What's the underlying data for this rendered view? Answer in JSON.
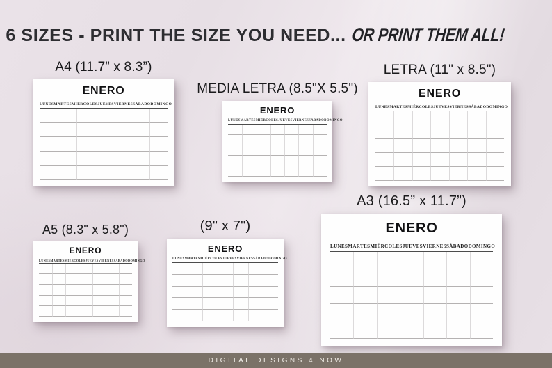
{
  "header": {
    "title_main": "6 SIZES - PRINT THE SIZE YOU NEED...",
    "title_script": "OR PRINT THEM ALL!"
  },
  "calendar_common": {
    "month": "ENERO",
    "day_headers": [
      "LUNES",
      "MARTES",
      "MIÉRCOLES",
      "JUEVES",
      "VIERNES",
      "SÁBADO",
      "DOMINGO"
    ],
    "rows": 5,
    "columns": 7
  },
  "calendars": [
    {
      "id": "a4",
      "label": "A4 (11.7” x 8.3”)"
    },
    {
      "id": "media-letra",
      "label": "MEDIA LETRA (8.5\"X 5.5\")"
    },
    {
      "id": "letra",
      "label": "LETRA (11\" x 8.5\")"
    },
    {
      "id": "a5",
      "label": "A5 (8.3\" x 5.8\")"
    },
    {
      "id": "9x7",
      "label": "(9\" x 7\")"
    },
    {
      "id": "a3",
      "label": "A3 (16.5” x 11.7”)"
    }
  ],
  "footer": {
    "brand": "DIGITAL DESIGNS 4 NOW"
  },
  "colors": {
    "background": "#e8e0e6",
    "paper": "#fefefe",
    "footer_bar": "#7b7268",
    "title_text": "#2d2d31",
    "header_underline": "#4c4c4c",
    "grid_line_horizontal": "#b5b2b2",
    "grid_line_vertical": "#dcdadb"
  }
}
